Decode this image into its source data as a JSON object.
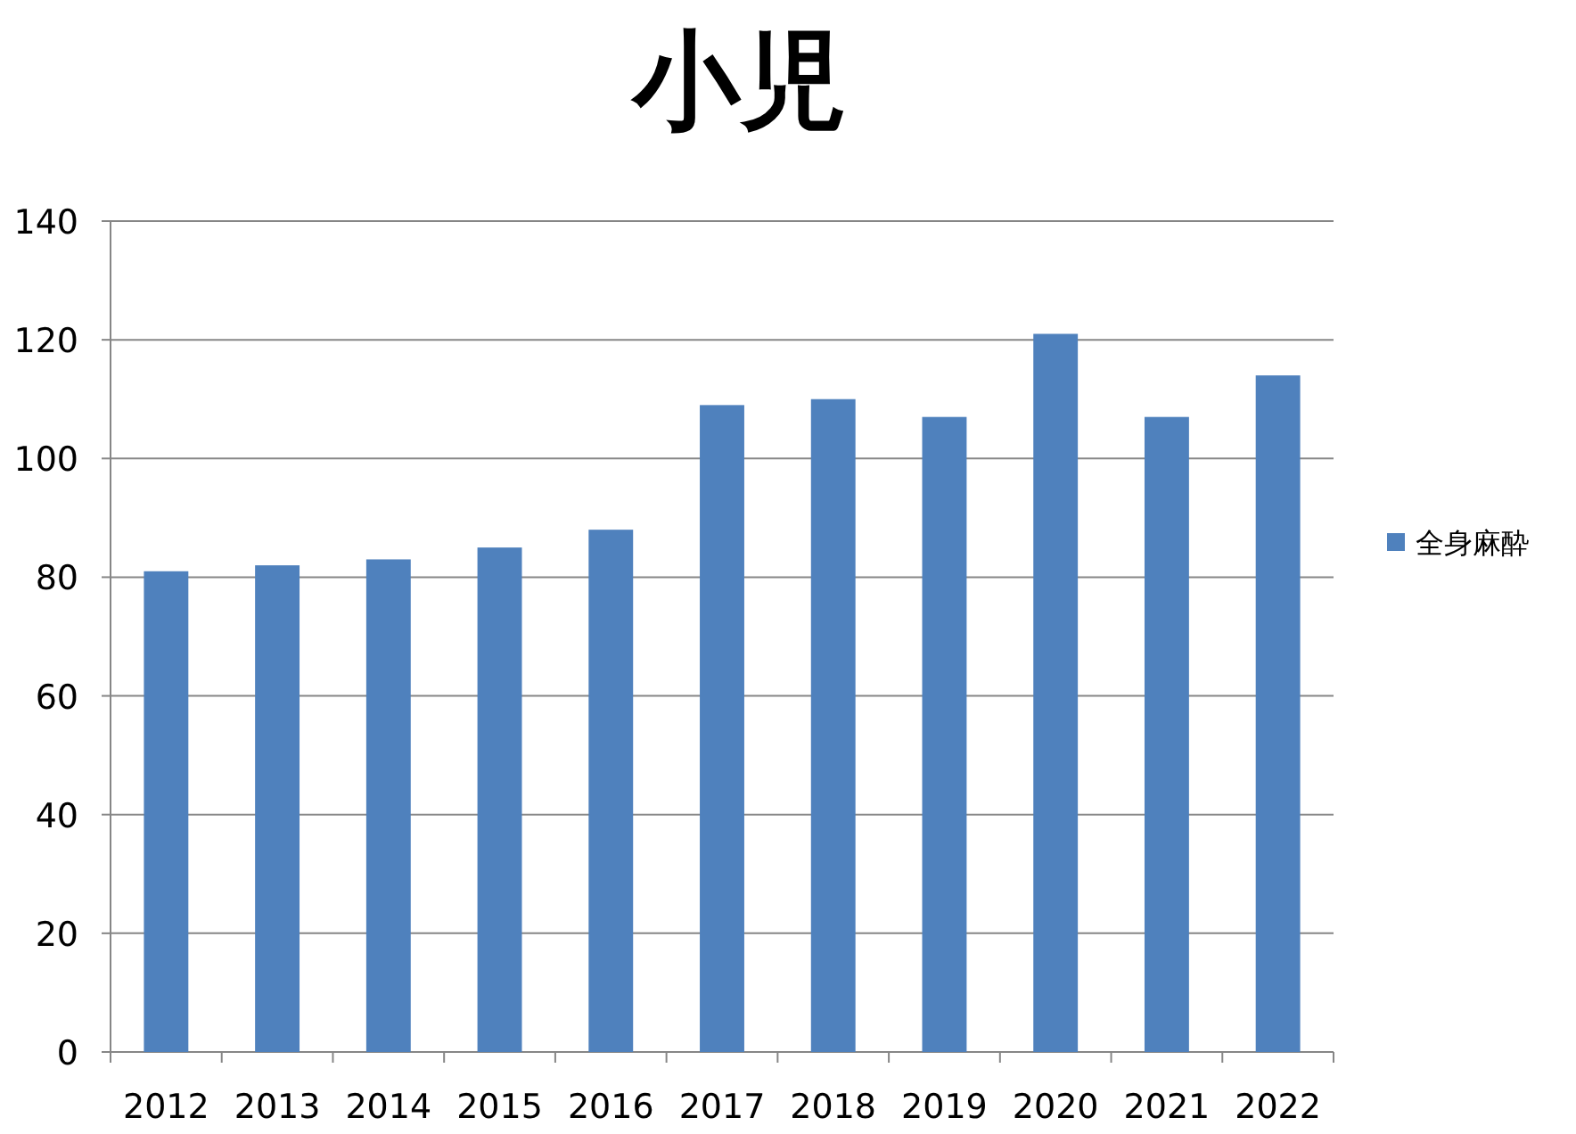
{
  "chart_data": {
    "type": "bar",
    "title": "小児",
    "categories": [
      "2012",
      "2013",
      "2014",
      "2015",
      "2016",
      "2017",
      "2018",
      "2019",
      "2020",
      "2021",
      "2022"
    ],
    "series": [
      {
        "name": "全身麻酔",
        "color": "#4f81bd",
        "values": [
          81,
          82,
          83,
          85,
          88,
          109,
          110,
          107,
          121,
          107,
          114
        ]
      }
    ],
    "ylim": [
      0,
      140
    ],
    "yticks": [
      0,
      20,
      40,
      60,
      80,
      100,
      120,
      140
    ],
    "grid": "y",
    "legend": "right"
  }
}
